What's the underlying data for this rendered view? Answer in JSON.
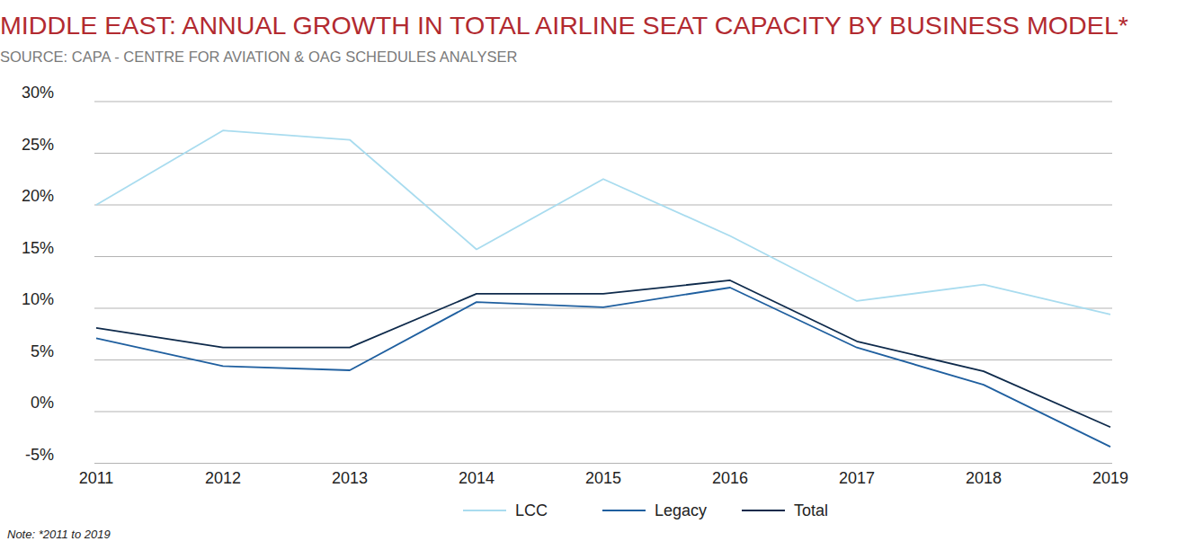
{
  "chart_data": {
    "type": "line",
    "title": "MIDDLE EAST: ANNUAL GROWTH IN TOTAL AIRLINE SEAT CAPACITY BY BUSINESS MODEL*",
    "subtitle": "SOURCE: CAPA - CENTRE FOR AVIATION & OAG SCHEDULES ANALYSER",
    "note": "Note: *2011 to 2019",
    "categories": [
      "2011",
      "2012",
      "2013",
      "2014",
      "2015",
      "2016",
      "2017",
      "2018",
      "2019"
    ],
    "series": [
      {
        "name": "LCC",
        "color": "#a9dcef",
        "values": [
          20.0,
          27.2,
          26.3,
          15.7,
          22.5,
          17.0,
          10.7,
          12.3,
          9.4
        ]
      },
      {
        "name": "Legacy",
        "color": "#1f5f9f",
        "values": [
          7.1,
          4.4,
          4.0,
          10.6,
          10.1,
          12.0,
          6.2,
          2.6,
          -3.4
        ]
      },
      {
        "name": "Total",
        "color": "#0e2a4b",
        "values": [
          8.1,
          6.2,
          6.2,
          11.4,
          11.4,
          12.7,
          6.8,
          3.9,
          -1.5
        ]
      }
    ],
    "ylim": [
      -5,
      30
    ],
    "yticks": [
      {
        "value": -5,
        "label": "-5%"
      },
      {
        "value": 0,
        "label": "0%"
      },
      {
        "value": 5,
        "label": "5%"
      },
      {
        "value": 10,
        "label": "10%"
      },
      {
        "value": 15,
        "label": "15%"
      },
      {
        "value": 20,
        "label": "20%"
      },
      {
        "value": 25,
        "label": "25%"
      },
      {
        "value": 30,
        "label": "30%"
      }
    ],
    "grid": true,
    "legend": "bottom"
  }
}
